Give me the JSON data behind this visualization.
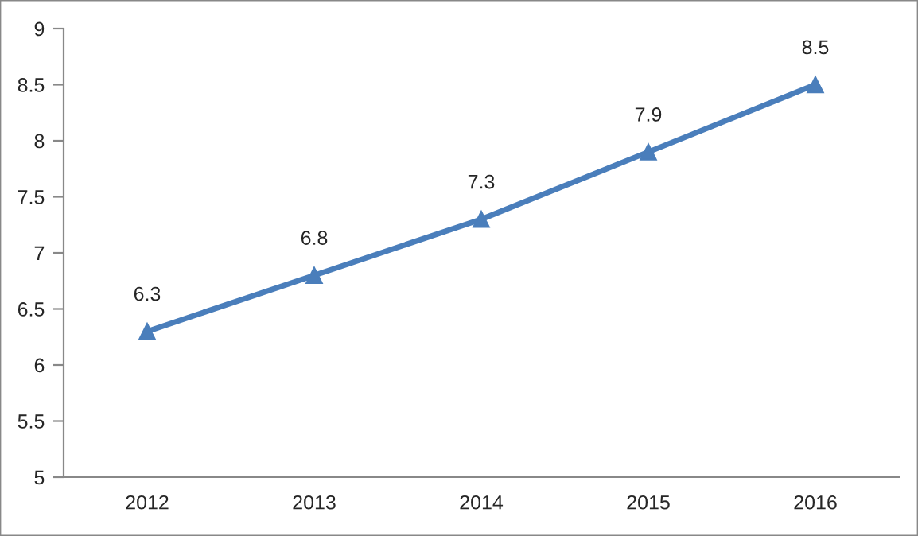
{
  "chart_data": {
    "type": "line",
    "categories": [
      "2012",
      "2013",
      "2014",
      "2015",
      "2016"
    ],
    "series": [
      {
        "color": "#4a7ebb",
        "values": [
          6.3,
          6.8,
          7.3,
          7.9,
          8.5
        ]
      }
    ],
    "ylim": [
      5,
      9
    ],
    "yticks": [
      5,
      5.5,
      6,
      6.5,
      7,
      7.5,
      8,
      8.5,
      9
    ],
    "marker": "triangle",
    "line_style": "solid",
    "data_labels": true,
    "grid": false,
    "legend": false
  }
}
